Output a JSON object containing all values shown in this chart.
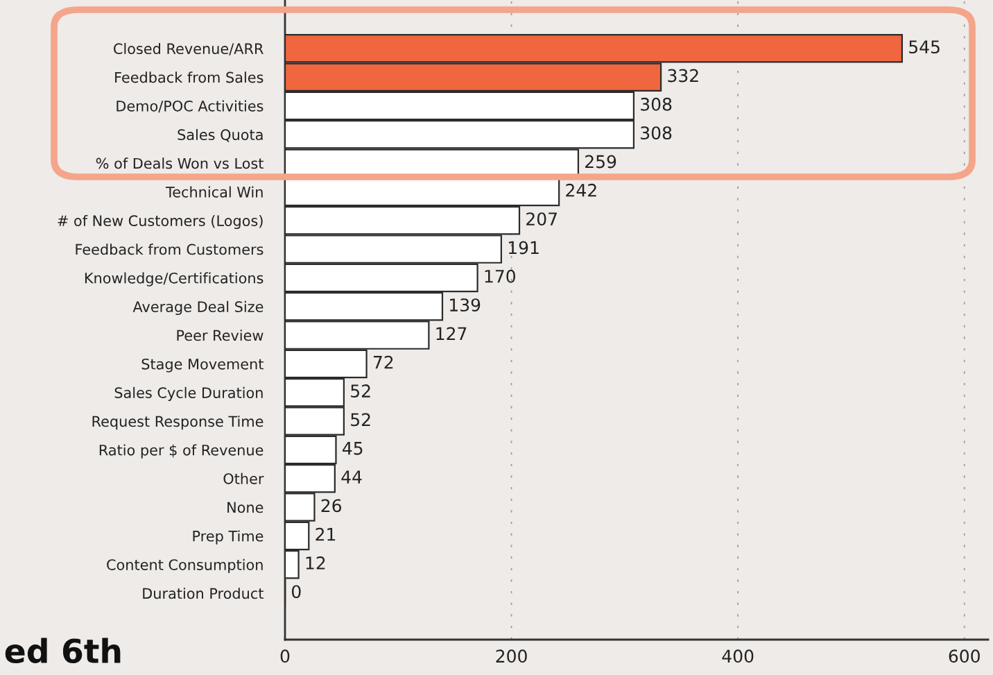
{
  "chart_data": {
    "type": "bar",
    "orientation": "horizontal",
    "categories": [
      "Closed Revenue/ARR",
      "Feedback from Sales",
      "Demo/POC Activities",
      "Sales Quota",
      "% of Deals Won vs Lost",
      "Technical Win",
      "# of New Customers (Logos)",
      "Feedback from Customers",
      "Knowledge/Certifications",
      "Average Deal Size",
      "Peer Review",
      "Stage Movement",
      "Sales Cycle Duration",
      "Request Response Time",
      "Ratio per $ of Revenue",
      "Other",
      "None",
      "Prep Time",
      "Content Consumption",
      "Duration Product"
    ],
    "values": [
      545,
      332,
      308,
      308,
      259,
      242,
      207,
      191,
      170,
      139,
      127,
      72,
      52,
      52,
      45,
      44,
      26,
      21,
      12,
      0
    ],
    "colors": [
      "#f0663f",
      "#f0663f",
      "#ffffff",
      "#ffffff",
      "#ffffff",
      "#ffffff",
      "#ffffff",
      "#ffffff",
      "#ffffff",
      "#ffffff",
      "#ffffff",
      "#ffffff",
      "#ffffff",
      "#ffffff",
      "#ffffff",
      "#ffffff",
      "#ffffff",
      "#ffffff",
      "#ffffff",
      "#2b2b2b"
    ],
    "data_labels": true,
    "xlim": [
      0,
      621
    ],
    "xticks": [
      0,
      200,
      400,
      600
    ],
    "grid": "x",
    "annotations": [
      "ed 6th"
    ]
  }
}
